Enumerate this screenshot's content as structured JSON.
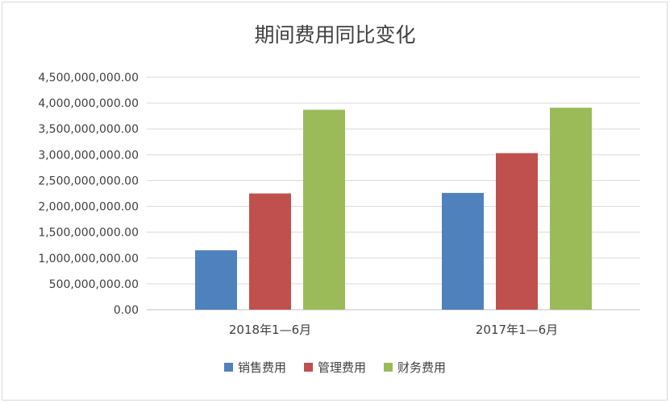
{
  "chart_data": {
    "type": "bar",
    "title": "期间费用同比变化",
    "categories": [
      "2018年1—6月",
      "2017年1—6月"
    ],
    "series": [
      {
        "name": "销售费用",
        "color": "#4f81bd",
        "values": [
          1150000000,
          2260000000
        ]
      },
      {
        "name": "管理费用",
        "color": "#c0504d",
        "values": [
          2250000000,
          3030000000
        ]
      },
      {
        "name": "财务费用",
        "color": "#9bbb59",
        "values": [
          3870000000,
          3910000000
        ]
      }
    ],
    "ylim": [
      0,
      4500000000
    ],
    "yticks": [
      "0.00",
      "500,000,000.00",
      "1,000,000,000.00",
      "1,500,000,000.00",
      "2,000,000,000.00",
      "2,500,000,000.00",
      "3,000,000,000.00",
      "3,500,000,000.00",
      "4,000,000,000.00",
      "4,500,000,000.00"
    ],
    "grid": true,
    "legend": "bottom"
  }
}
